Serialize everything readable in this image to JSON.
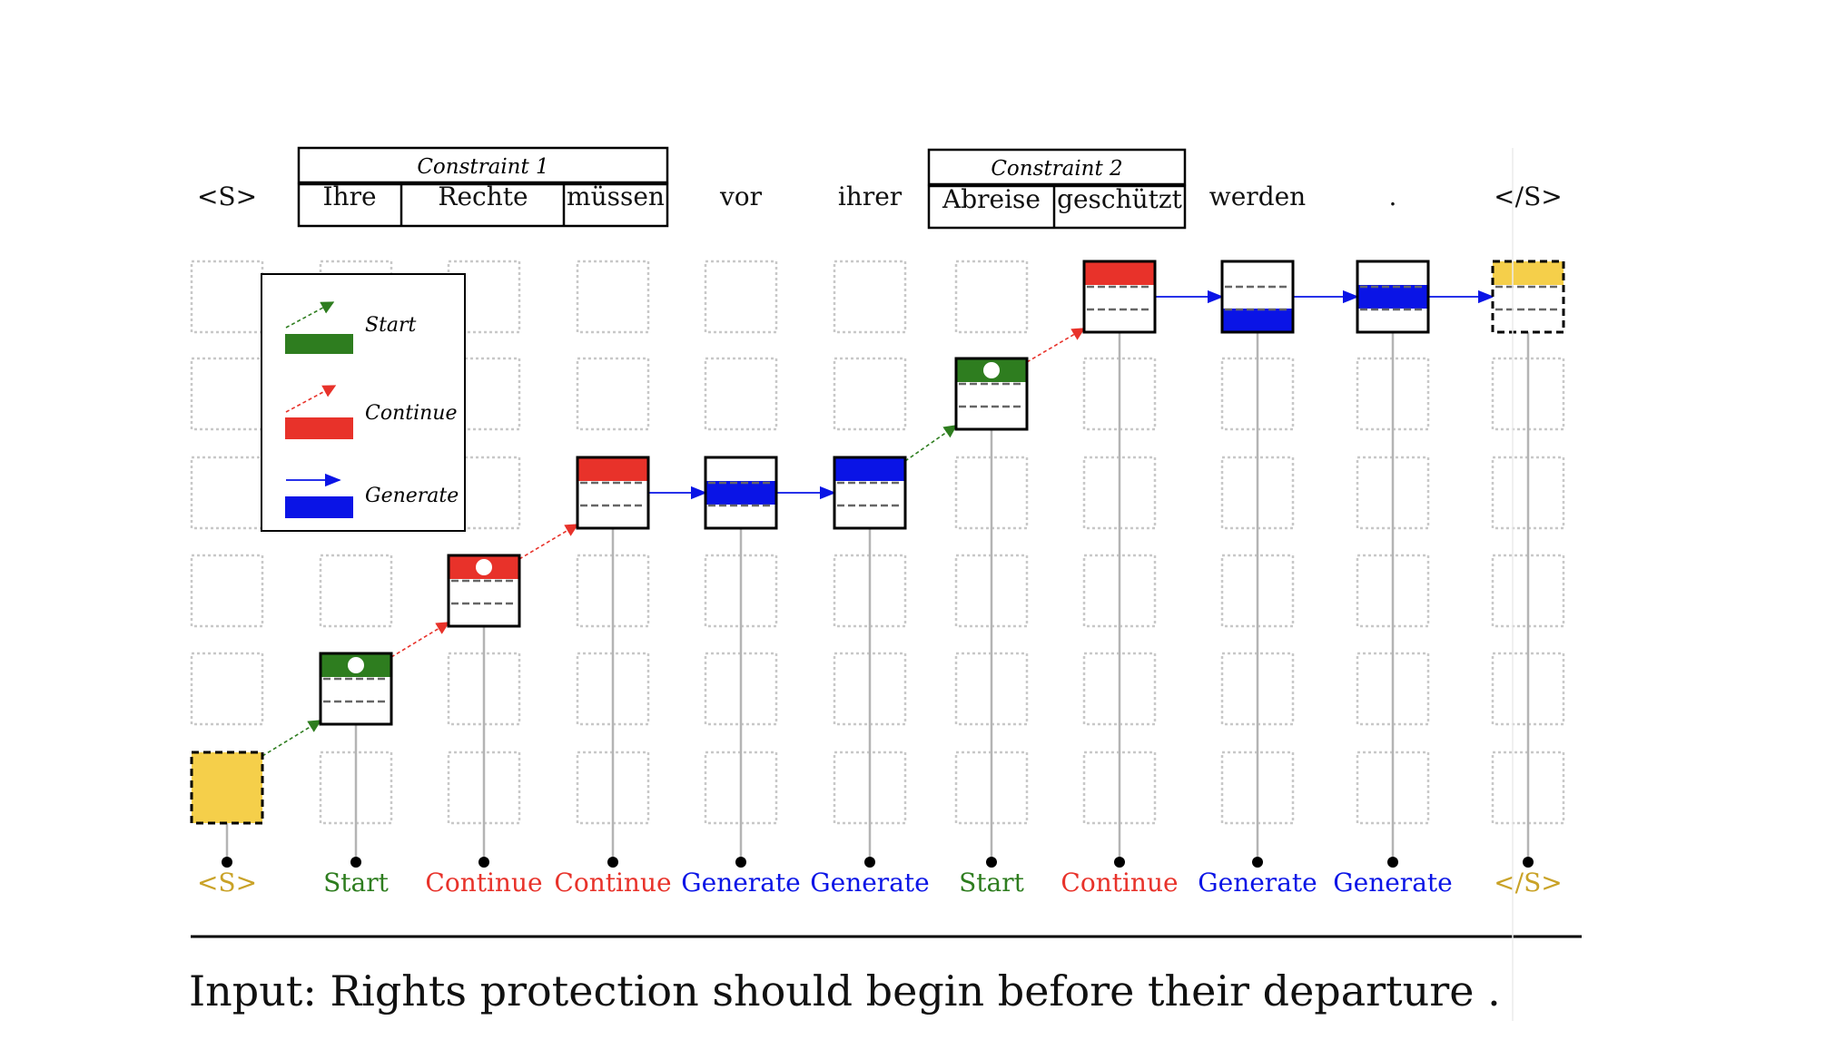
{
  "constraints": [
    {
      "label": "Constraint 1",
      "words": [
        "Ihre",
        "Rechte",
        "müssen"
      ]
    },
    {
      "label": "Constraint 2",
      "words": [
        "Abreise",
        "geschützt"
      ]
    }
  ],
  "target_tokens": [
    "<S>",
    "Ihre",
    "Rechte",
    "müssen",
    "vor",
    "ihrer",
    "Abreise",
    "geschützt",
    "werden",
    ".",
    "</S>"
  ],
  "steps": [
    {
      "label": "<S>",
      "kind": "bos"
    },
    {
      "label": "Start",
      "kind": "start"
    },
    {
      "label": "Continue",
      "kind": "continue"
    },
    {
      "label": "Continue",
      "kind": "continue"
    },
    {
      "label": "Generate",
      "kind": "generate"
    },
    {
      "label": "Generate",
      "kind": "generate"
    },
    {
      "label": "Start",
      "kind": "start"
    },
    {
      "label": "Continue",
      "kind": "continue"
    },
    {
      "label": "Generate",
      "kind": "generate"
    },
    {
      "label": "Generate",
      "kind": "generate"
    },
    {
      "label": "</S>",
      "kind": "eos"
    }
  ],
  "legend": {
    "start": "Start",
    "continue": "Continue",
    "generate": "Generate"
  },
  "input_sentence": "Input: Rights protection should begin before their departure .",
  "colors": {
    "start": "#2e7d1f",
    "continue": "#e8322a",
    "generate": "#0a14e6",
    "boundary": "#f5cf4a",
    "boundary_label": "#c9a227",
    "grid_stroke": "#c8c8c8",
    "stem": "#b4b4b4"
  }
}
